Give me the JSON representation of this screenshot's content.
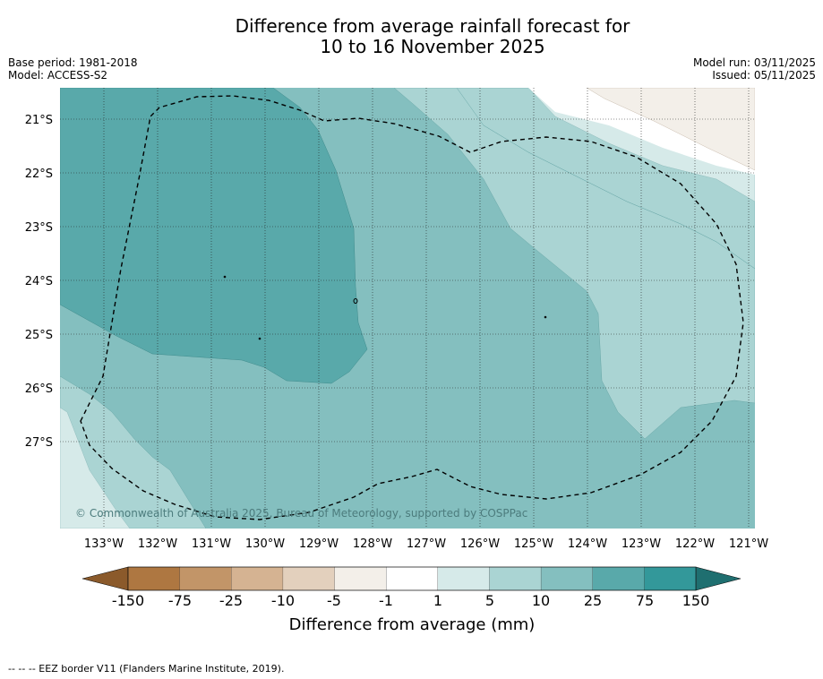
{
  "title": {
    "line1": "Difference from average rainfall forecast for",
    "line2": "10 to 16 November 2025"
  },
  "meta_left": {
    "base_period": "Base period: 1981-2018",
    "model": "Model: ACCESS-S2"
  },
  "meta_right": {
    "model_run": "Model run: 03/11/2025",
    "issued": "Issued: 05/11/2025"
  },
  "map": {
    "lat_labels": [
      "21°S",
      "22°S",
      "23°S",
      "24°S",
      "25°S",
      "26°S",
      "27°S"
    ],
    "lon_labels": [
      "133°W",
      "132°W",
      "131°W",
      "130°W",
      "129°W",
      "128°W",
      "127°W",
      "126°W",
      "125°W",
      "124°W",
      "123°W",
      "122°W",
      "121°W"
    ],
    "copyright": "© Commonwealth of Australia 2025, Bureau of Meteorology, supported by COSPPac"
  },
  "colorbar": {
    "ticks": [
      "-150",
      "-75",
      "-25",
      "-10",
      "-5",
      "-1",
      "1",
      "5",
      "10",
      "25",
      "75",
      "150"
    ],
    "colors": [
      "#ae7741",
      "#c29568",
      "#d5b392",
      "#e3d0bd",
      "#f3efe9",
      "#ffffff",
      "#d6eae9",
      "#aad4d3",
      "#84bfbf",
      "#59a9aa",
      "#33989a",
      "#1f6f70"
    ],
    "label": "Difference from average (mm)"
  },
  "footer": "-- -- -- EEZ border V11 (Flanders Marine Institute, 2019)."
}
